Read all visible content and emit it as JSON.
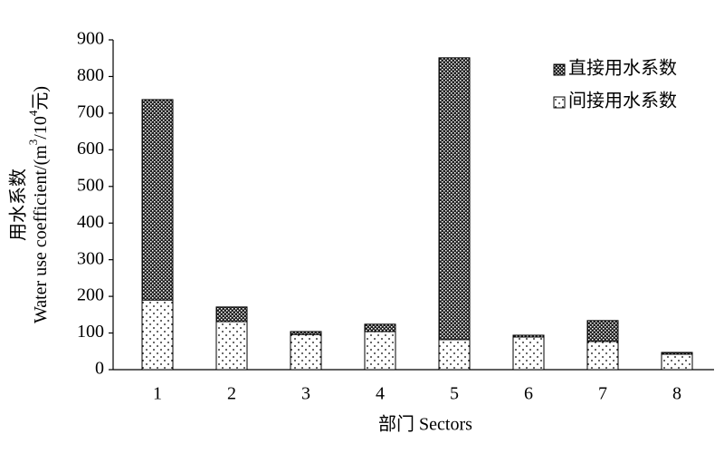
{
  "chart_data": {
    "type": "stacked_bar",
    "y_label_cn": "用水系数",
    "y_label": [
      "Water use coefficient/(m",
      "3",
      "/10",
      "4",
      "元)"
    ],
    "x_label": "部门 Sectors",
    "categories": [
      "1",
      "2",
      "3",
      "4",
      "5",
      "6",
      "7",
      "8"
    ],
    "series": [
      {
        "name": "间接用水系数",
        "pattern": "dots",
        "color": "#000000",
        "values": [
          190,
          131,
          96,
          104,
          82,
          89,
          77,
          42
        ]
      },
      {
        "name": "直接用水系数",
        "pattern": "crosshatch",
        "color": "#000000",
        "values": [
          547,
          40,
          8,
          20,
          769,
          5,
          57,
          5
        ]
      }
    ],
    "ylim": [
      0,
      900
    ],
    "yticks": [
      0,
      100,
      200,
      300,
      400,
      500,
      600,
      700,
      800,
      900
    ],
    "legend": "top-right",
    "grid": false
  }
}
